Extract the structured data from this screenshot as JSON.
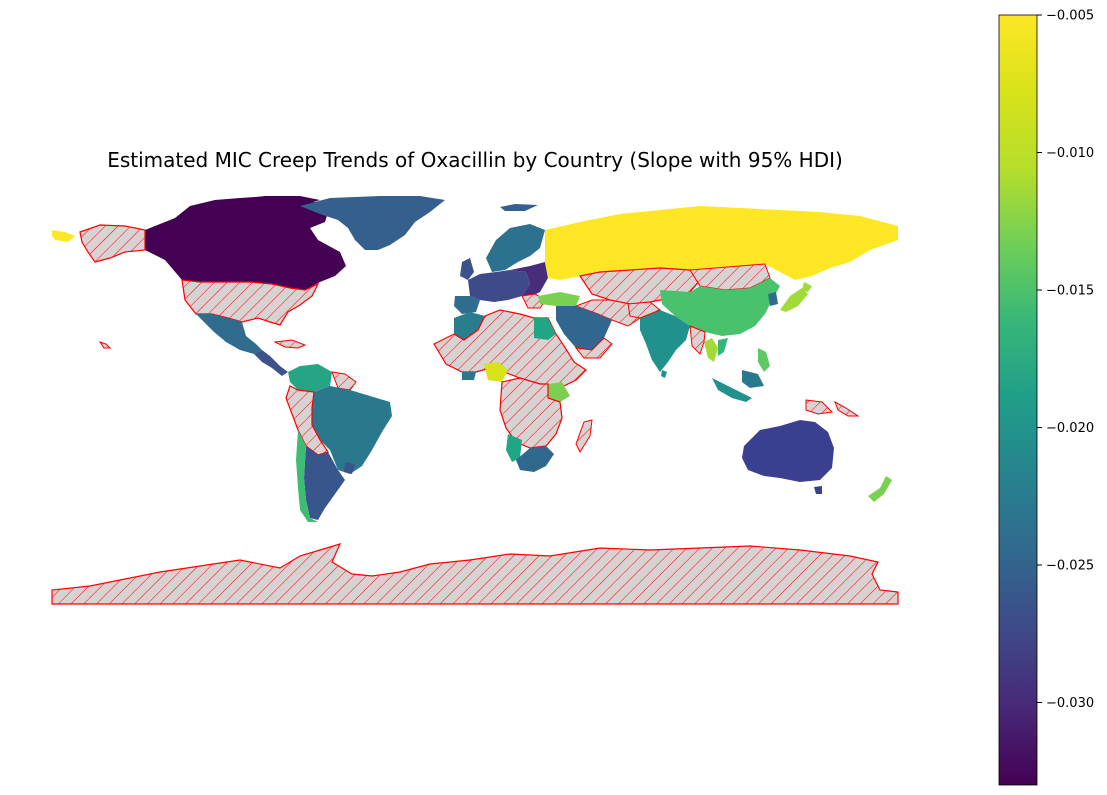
{
  "title": "Estimated MIC Creep Trends of Oxacillin by Country (Slope with 95% HDI)",
  "colorbar": {
    "min": -0.033,
    "max": -0.005,
    "ticks": [
      {
        "value": -0.005,
        "label": "−0.005"
      },
      {
        "value": -0.01,
        "label": "−0.010"
      },
      {
        "value": -0.015,
        "label": "−0.015"
      },
      {
        "value": -0.02,
        "label": "−0.020"
      },
      {
        "value": -0.025,
        "label": "−0.025"
      },
      {
        "value": -0.03,
        "label": "−0.030"
      }
    ]
  },
  "colors": {
    "no_data_fill": "#d9d2d2",
    "no_data_edge": "#ff0000"
  }
}
